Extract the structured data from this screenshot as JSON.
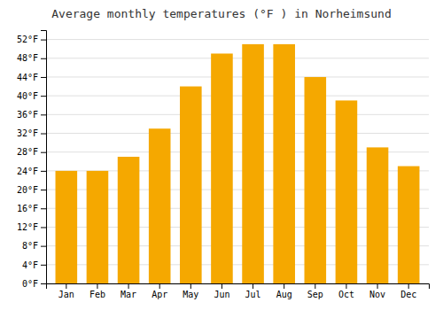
{
  "chart_data": {
    "type": "bar",
    "title": "Average monthly temperatures (°F ) in Norheimsund",
    "categories": [
      "Jan",
      "Feb",
      "Mar",
      "Apr",
      "May",
      "Jun",
      "Jul",
      "Aug",
      "Sep",
      "Oct",
      "Nov",
      "Dec"
    ],
    "values": [
      24,
      24,
      27,
      33,
      42,
      49,
      51,
      51,
      44,
      39,
      29,
      25
    ],
    "color": "#F5A800",
    "ylim": [
      0,
      54
    ],
    "yticks": [
      {
        "value": 0,
        "label": "0°F"
      },
      {
        "value": 4,
        "label": "4°F"
      },
      {
        "value": 8,
        "label": "8°F"
      },
      {
        "value": 12,
        "label": "12°F"
      },
      {
        "value": 16,
        "label": "16°F"
      },
      {
        "value": 20,
        "label": "20°F"
      },
      {
        "value": 24,
        "label": "24°F"
      },
      {
        "value": 28,
        "label": "28°F"
      },
      {
        "value": 32,
        "label": "32°F"
      },
      {
        "value": 36,
        "label": "36°F"
      },
      {
        "value": 40,
        "label": "40°F"
      },
      {
        "value": 44,
        "label": "44°F"
      },
      {
        "value": 48,
        "label": "48°F"
      },
      {
        "value": 52,
        "label": "52°F"
      }
    ],
    "grid": true
  }
}
